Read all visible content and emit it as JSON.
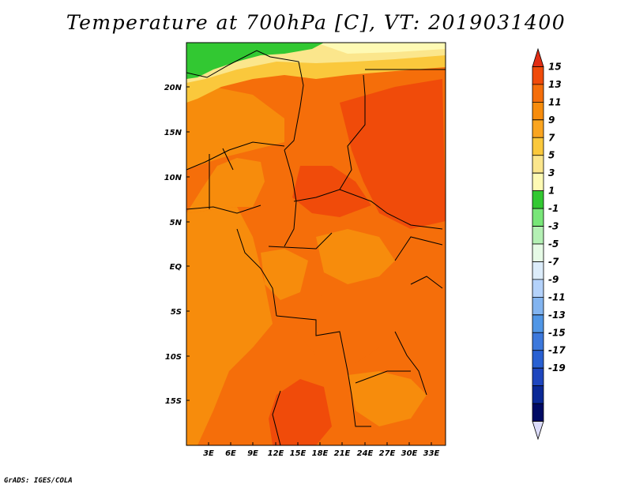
{
  "title": "Temperature at 700hPa [C], VT: 2019031400",
  "credit": "GrADS: IGES/COLA",
  "map": {
    "lat_labels": [
      "20N",
      "15N",
      "10N",
      "5N",
      "EQ",
      "5S",
      "10S",
      "15S"
    ],
    "lon_labels": [
      "3E",
      "6E",
      "9E",
      "12E",
      "15E",
      "18E",
      "21E",
      "24E",
      "27E",
      "30E",
      "33E"
    ]
  },
  "colorbar": {
    "labels": [
      "15",
      "13",
      "11",
      "9",
      "7",
      "5",
      "3",
      "1",
      "-1",
      "-3",
      "-5",
      "-7",
      "-9",
      "-11",
      "-13",
      "-15",
      "-17",
      "-19"
    ],
    "colors": [
      "#e12d14",
      "#f04b0a",
      "#f56e0a",
      "#f78c0c",
      "#faa520",
      "#fac83c",
      "#fbe68c",
      "#fefab4",
      "#32c832",
      "#78e678",
      "#b4f0b4",
      "#e6fae6",
      "#dcecfa",
      "#b4d2fa",
      "#82b4f0",
      "#5096e6",
      "#3c78dc",
      "#2860d2",
      "#1e46be",
      "#0a2896",
      "#000a64",
      "#dcdcfa"
    ]
  }
}
